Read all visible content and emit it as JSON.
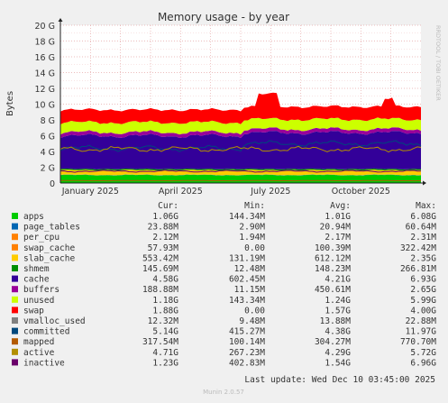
{
  "chart_data": {
    "type": "area",
    "title": "Memory usage - by year",
    "ylabel": "Bytes",
    "side_label": "RRDTOOL / TOBI OETIKER",
    "y_ticks": [
      "0",
      "2 G",
      "4 G",
      "6 G",
      "8 G",
      "10 G",
      "12 G",
      "14 G",
      "16 G",
      "18 G",
      "20 G"
    ],
    "ylim": [
      0,
      20
    ],
    "y_unit": "G",
    "x_ticks": [
      "January 2025",
      "April 2025",
      "July 2025",
      "October 2025"
    ],
    "grid": true,
    "stacked_series_approx": [
      {
        "name": "apps",
        "color": "#00cc00",
        "level_g": 1.0
      },
      {
        "name": "page_tables",
        "color": "#0066b3",
        "level_g": 0.03
      },
      {
        "name": "slab_cache",
        "color": "#ffcc00",
        "level_g": 0.6
      },
      {
        "name": "shmem",
        "color": "#008f00",
        "level_g": 0.15
      },
      {
        "name": "cache",
        "color": "#330099",
        "level_g": 4.2
      },
      {
        "name": "buffers",
        "color": "#990099",
        "level_g": 0.45
      },
      {
        "name": "unused",
        "color": "#ccff00",
        "level_g": 1.25
      },
      {
        "name": "swap",
        "color": "#ff0000",
        "level_g": 1.6
      }
    ],
    "line_series_approx": [
      {
        "name": "committed",
        "color": "#00487d",
        "level_g": 4.4
      },
      {
        "name": "mapped",
        "color": "#b35a00",
        "level_g": 0.3
      },
      {
        "name": "active",
        "color": "#b38f00",
        "level_g": 4.3
      },
      {
        "name": "inactive",
        "color": "#6b006b",
        "level_g": 1.5
      }
    ]
  },
  "legend": {
    "headers": {
      "cur": "Cur:",
      "min": "Min:",
      "avg": "Avg:",
      "max": "Max:"
    },
    "rows": [
      {
        "name": "apps",
        "color": "#00cc00",
        "cur": "1.06G",
        "min": "144.34M",
        "avg": "1.01G",
        "max": "6.08G"
      },
      {
        "name": "page_tables",
        "color": "#0066b3",
        "cur": "23.88M",
        "min": "2.90M",
        "avg": "20.94M",
        "max": "60.64M"
      },
      {
        "name": "per_cpu",
        "color": "#ff8000",
        "cur": "2.12M",
        "min": "1.94M",
        "avg": "2.17M",
        "max": "2.31M"
      },
      {
        "name": "swap_cache",
        "color": "#ff8000",
        "cur": "57.93M",
        "min": "0.00",
        "avg": "100.39M",
        "max": "322.42M"
      },
      {
        "name": "slab_cache",
        "color": "#ffcc00",
        "cur": "553.42M",
        "min": "131.19M",
        "avg": "612.12M",
        "max": "2.35G"
      },
      {
        "name": "shmem",
        "color": "#008f00",
        "cur": "145.69M",
        "min": "12.48M",
        "avg": "148.23M",
        "max": "266.81M"
      },
      {
        "name": "cache",
        "color": "#330099",
        "cur": "4.58G",
        "min": "602.45M",
        "avg": "4.21G",
        "max": "6.93G"
      },
      {
        "name": "buffers",
        "color": "#990099",
        "cur": "188.88M",
        "min": "11.15M",
        "avg": "450.61M",
        "max": "2.65G"
      },
      {
        "name": "unused",
        "color": "#ccff00",
        "cur": "1.18G",
        "min": "143.34M",
        "avg": "1.24G",
        "max": "5.99G"
      },
      {
        "name": "swap",
        "color": "#ff0000",
        "cur": "1.88G",
        "min": "0.00",
        "avg": "1.57G",
        "max": "4.00G"
      },
      {
        "name": "vmalloc_used",
        "color": "#808080",
        "cur": "12.32M",
        "min": "9.48M",
        "avg": "13.88M",
        "max": "22.88M"
      },
      {
        "name": "committed",
        "color": "#00487d",
        "cur": "5.14G",
        "min": "415.27M",
        "avg": "4.38G",
        "max": "11.97G"
      },
      {
        "name": "mapped",
        "color": "#b35a00",
        "cur": "317.54M",
        "min": "100.14M",
        "avg": "304.27M",
        "max": "770.70M"
      },
      {
        "name": "active",
        "color": "#b38f00",
        "cur": "4.71G",
        "min": "267.23M",
        "avg": "4.29G",
        "max": "5.72G"
      },
      {
        "name": "inactive",
        "color": "#6b006b",
        "cur": "1.23G",
        "min": "402.83M",
        "avg": "1.54G",
        "max": "6.96G"
      }
    ]
  },
  "footer": {
    "last_update": "Last update: Wed Dec 10 03:45:00 2025",
    "version": "Munin 2.0.57"
  }
}
